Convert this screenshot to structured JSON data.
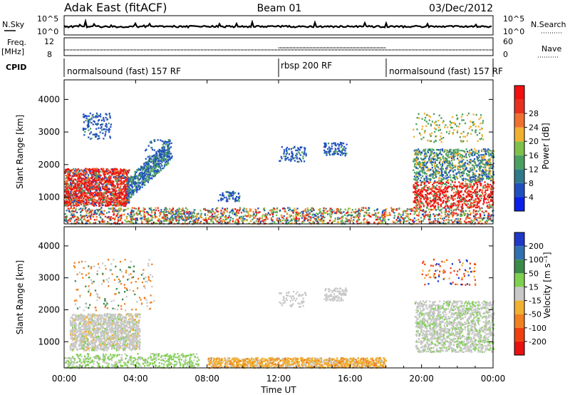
{
  "header": {
    "station": "Adak East (fitACF)",
    "beam": "Beam 01",
    "date": "03/Dec/2012"
  },
  "top_panels": {
    "nsky": {
      "label": "N.Sky",
      "right_label": "N.Search",
      "left_ticks": [
        "10^5",
        "10^0"
      ],
      "right_ticks": [
        "10^5",
        "10^0"
      ]
    },
    "freq": {
      "label": "Freq.",
      "unit": "[MHz]",
      "right_label": "Nave",
      "left_ticks": [
        "12",
        "8"
      ],
      "right_ticks": [
        "60",
        "0"
      ]
    },
    "cpid": {
      "label": "CPID",
      "segments": [
        {
          "label": "normalsound (fast) 157 RF",
          "start_h": 0,
          "end_h": 12
        },
        {
          "label": "rbsp 200 RF",
          "start_h": 12,
          "end_h": 18
        },
        {
          "label": "normalsound (fast) 157 RF",
          "start_h": 18,
          "end_h": 24
        }
      ]
    }
  },
  "chart_data": [
    {
      "type": "heatmap",
      "parameter": "Power",
      "ylabel": "Slant Range [km]",
      "ylim": [
        180,
        4600
      ],
      "xlim": [
        0,
        24
      ],
      "yticks": [
        1000,
        2000,
        3000,
        4000
      ],
      "colorbar": {
        "label": "Power [dB]",
        "range": [
          0,
          32
        ],
        "ticks": [
          "4",
          "8",
          "12",
          "16",
          "20",
          "24",
          "28"
        ],
        "colors": [
          "#0a20e8",
          "#2050c0",
          "#2f7a8a",
          "#4aa060",
          "#7fc04a",
          "#f0b030",
          "#f07030",
          "#e83020",
          "#f01010"
        ]
      }
    },
    {
      "type": "heatmap",
      "parameter": "Velocity",
      "ylabel": "Slant Range [km]",
      "ylim": [
        180,
        4600
      ],
      "xlim": [
        0,
        24
      ],
      "yticks": [
        1000,
        2000,
        3000,
        4000
      ],
      "colorbar": {
        "label": "Velocity [m s⁻¹]",
        "range": [
          -250,
          250
        ],
        "ticks": [
          "200",
          "100",
          "50",
          "15",
          "-15",
          "-50",
          "-100",
          "-200"
        ],
        "colors": [
          "#2038c8",
          "#3070b0",
          "#3a8a4a",
          "#80d050",
          "#c8c8c8",
          "#f0b030",
          "#f08020",
          "#f04010",
          "#e81010"
        ]
      }
    }
  ],
  "xaxis": {
    "label": "Time UT",
    "ticks": [
      "00:00",
      "04:00",
      "08:00",
      "12:00",
      "16:00",
      "20:00",
      "00:00"
    ]
  }
}
